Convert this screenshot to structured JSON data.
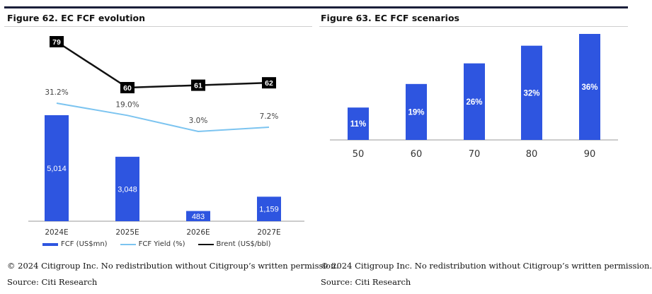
{
  "left": {
    "title": "Figure 62. EC FCF evolution",
    "copyright": "© 2024 Citigroup Inc. No redistribution without Citigroup’s written permission.",
    "source": "Source: Citi Research"
  },
  "right": {
    "title": "Figure 63. EC FCF scenarios",
    "copyright": "© 2024 Citigroup Inc. No redistribution without Citigroup’s written permission.",
    "source": "Source: Citi Research"
  },
  "colors": {
    "bar": "#2e55e0",
    "yield_line": "#7cc4f0",
    "brent_line": "#111111",
    "accent": "#1a1f3a"
  },
  "chart_data": [
    {
      "type": "bar",
      "categories": [
        "2024E",
        "2025E",
        "2026E",
        "2027E"
      ],
      "series": [
        {
          "name": "FCF (US$mn)",
          "type": "bar",
          "values": [
            5014,
            3048,
            483,
            1159
          ],
          "labels": [
            "5,014",
            "3,048",
            "483",
            "1,159"
          ]
        },
        {
          "name": "FCF Yield (%)",
          "type": "line",
          "values": [
            31.2,
            19.0,
            3.0,
            7.2
          ],
          "labels": [
            "31.2%",
            "19.0%",
            "3.0%",
            "7.2%"
          ]
        },
        {
          "name": "Brent (US$/bbl)",
          "type": "line",
          "values": [
            79,
            60,
            61,
            62
          ],
          "labels": [
            "79",
            "60",
            "61",
            "62"
          ]
        }
      ],
      "legend_position": "bottom",
      "grid": false
    },
    {
      "type": "bar",
      "categories": [
        "50",
        "60",
        "70",
        "80",
        "90"
      ],
      "values": [
        11,
        19,
        26,
        32,
        36
      ],
      "labels": [
        "11%",
        "19%",
        "26%",
        "32%",
        "36%"
      ],
      "grid": false
    }
  ]
}
